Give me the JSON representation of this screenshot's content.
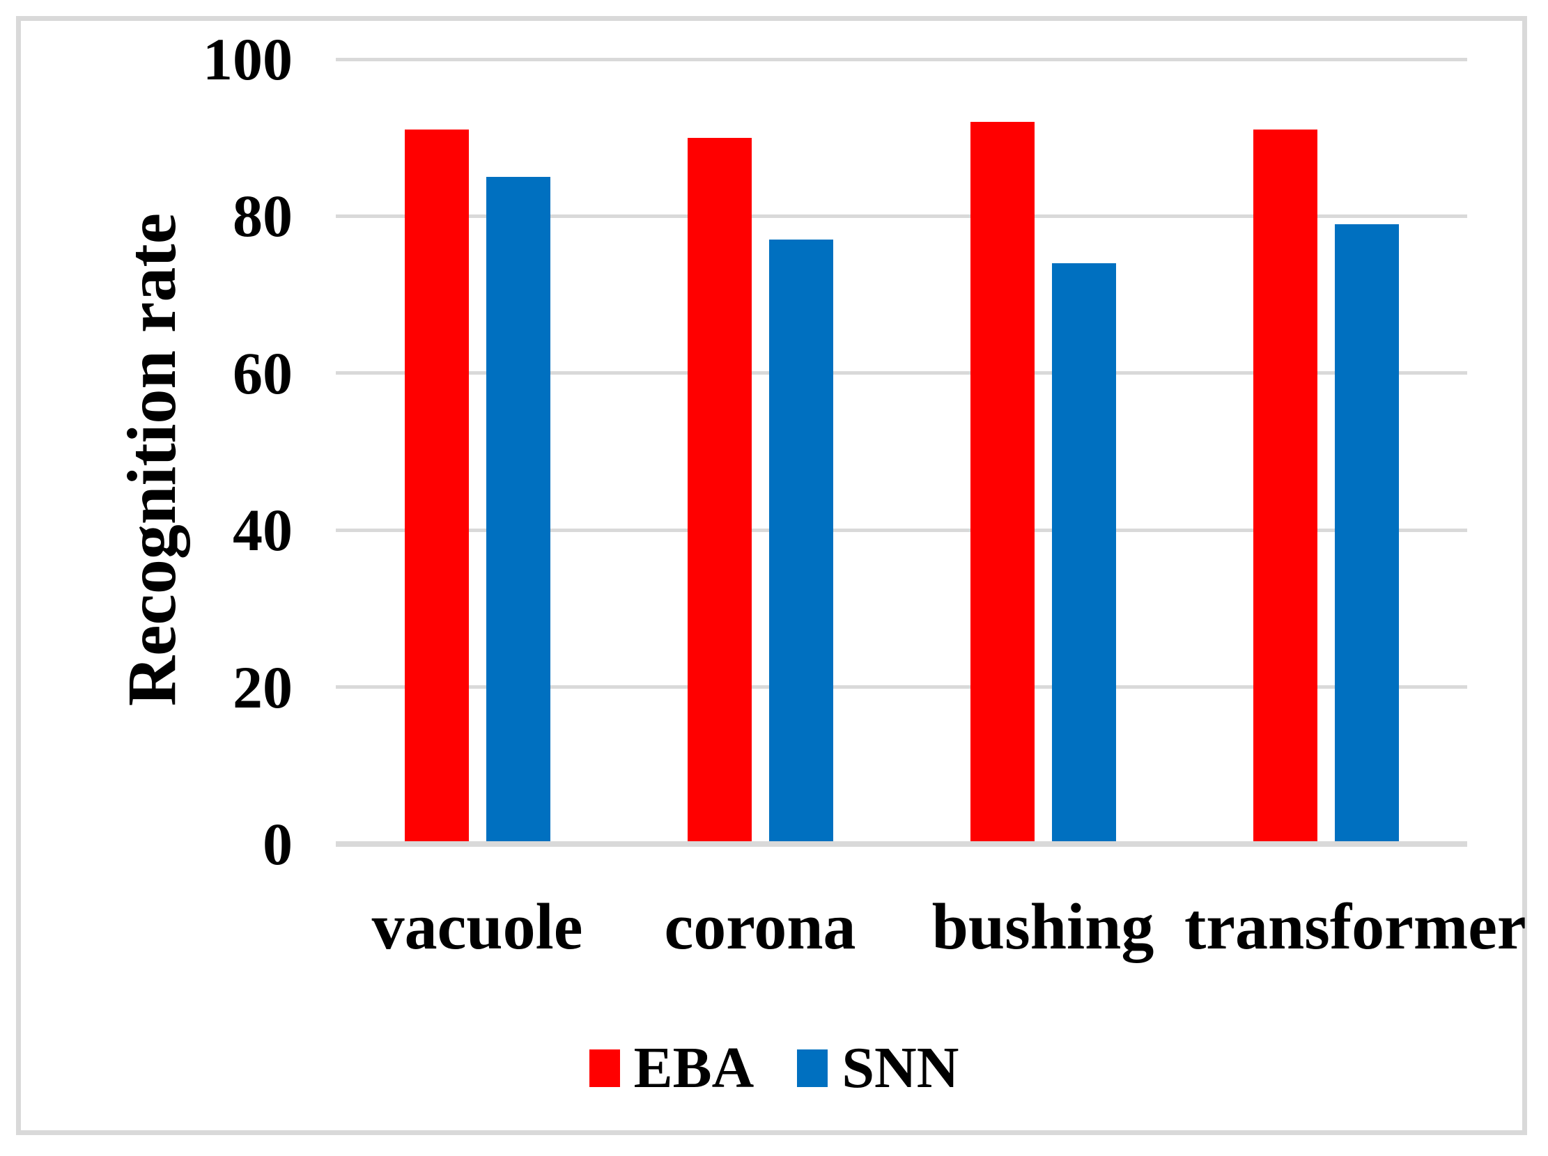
{
  "chart_data": {
    "type": "bar",
    "title": "",
    "ylabel": "Recognition rate",
    "xlabel": "",
    "categories": [
      "vacuole",
      "corona",
      "bushing",
      "transformer"
    ],
    "series": [
      {
        "name": "EBA",
        "color": "#ff0000",
        "values": [
          91,
          90,
          92,
          91
        ]
      },
      {
        "name": "SNN",
        "color": "#0070c0",
        "values": [
          85,
          77,
          74,
          79
        ]
      }
    ],
    "ylim": [
      0,
      100
    ],
    "yticks": [
      0,
      20,
      40,
      60,
      80,
      100
    ],
    "grid": "horizontal",
    "legend_position": "bottom"
  },
  "colors": {
    "gridline": "#d9d9d9",
    "axis_line": "#d9d9d9",
    "frame_border": "#d9d9d9",
    "background": "#ffffff"
  }
}
